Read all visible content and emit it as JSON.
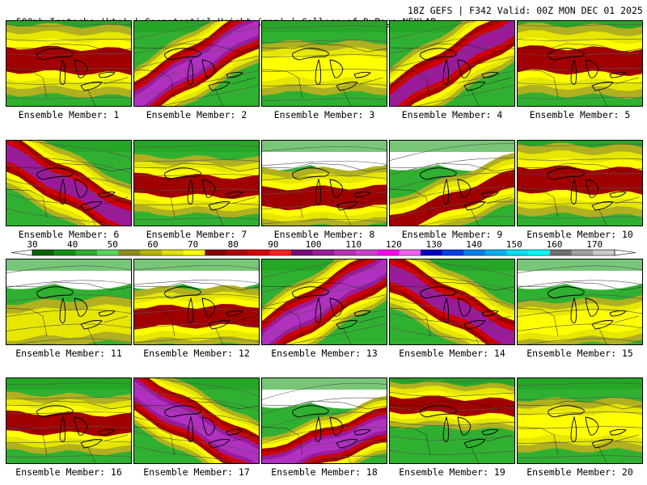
{
  "header": {
    "title_left": "500mb Isotachs (kts) | Geopotential Height (gpm) | College of DuPage NEXLAB",
    "title_right": "18Z GEFS | F342 Valid: 00Z MON DEC 01 2025"
  },
  "colorbar": {
    "units": "kts",
    "ticks": [
      "30",
      "40",
      "50",
      "60",
      "70",
      "80",
      "90",
      "100",
      "110",
      "120",
      "130",
      "140",
      "150",
      "160",
      "170"
    ],
    "colors": [
      "#006400",
      "#109010",
      "#30b030",
      "#58d858",
      "#8c8c18",
      "#b4b400",
      "#e0e000",
      "#ffff00",
      "#8b0000",
      "#b00000",
      "#d80000",
      "#ff2020",
      "#7a0a7a",
      "#9a1a9a",
      "#b830b8",
      "#d040d0",
      "#ff00ff",
      "#ff60ff",
      "#0000c8",
      "#0040e8",
      "#0080ff",
      "#00b0ff",
      "#00e0ff",
      "#00ffff",
      "#707070",
      "#a0a0a0",
      "#c8c8c8"
    ]
  },
  "members": [
    {
      "label": "Ensemble Member: 1",
      "jet": "broad-zonal",
      "peak": 80
    },
    {
      "label": "Ensemble Member: 2",
      "jet": "sw-ne",
      "peak": 110
    },
    {
      "label": "Ensemble Member: 3",
      "jet": "weak-zonal",
      "peak": 70
    },
    {
      "label": "Ensemble Member: 4",
      "jet": "sw-ne",
      "peak": 100
    },
    {
      "label": "Ensemble Member: 5",
      "jet": "broad-zonal",
      "peak": 80
    },
    {
      "label": "Ensemble Member: 6",
      "jet": "nw-se",
      "peak": 100
    },
    {
      "label": "Ensemble Member: 7",
      "jet": "zonal",
      "peak": 80
    },
    {
      "label": "Ensemble Member: 8",
      "jet": "zonal-south",
      "peak": 80
    },
    {
      "label": "Ensemble Member: 9",
      "jet": "south-sw-ne",
      "peak": 80
    },
    {
      "label": "Ensemble Member: 10",
      "jet": "broad-zonal",
      "peak": 80
    },
    {
      "label": "Ensemble Member: 11",
      "jet": "weak-south",
      "peak": 60
    },
    {
      "label": "Ensemble Member: 12",
      "jet": "zonal-south",
      "peak": 80
    },
    {
      "label": "Ensemble Member: 13",
      "jet": "sw-ne",
      "peak": 110
    },
    {
      "label": "Ensemble Member: 14",
      "jet": "nw-se",
      "peak": 100
    },
    {
      "label": "Ensemble Member: 15",
      "jet": "weak-south",
      "peak": 70
    },
    {
      "label": "Ensemble Member: 16",
      "jet": "zonal",
      "peak": 80
    },
    {
      "label": "Ensemble Member: 17",
      "jet": "nw-se",
      "peak": 110
    },
    {
      "label": "Ensemble Member: 18",
      "jet": "sw-ne-south",
      "peak": 110
    },
    {
      "label": "Ensemble Member: 19",
      "jet": "zonal-double",
      "peak": 80
    },
    {
      "label": "Ensemble Member: 20",
      "jet": "weak-zonal",
      "peak": 70
    }
  ]
}
